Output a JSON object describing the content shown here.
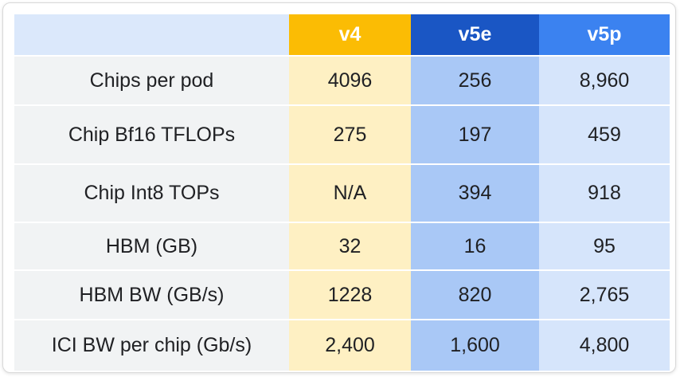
{
  "table": {
    "headers": [
      "",
      "v4",
      "v5e",
      "v5p"
    ],
    "rows": [
      {
        "label": "Chips per pod",
        "v4": "4096",
        "v5e": "256",
        "v5p": "8,960"
      },
      {
        "label": "Chip Bf16 TFLOPs",
        "v4": "275",
        "v5e": "197",
        "v5p": "459"
      },
      {
        "label": "Chip Int8 TOPs",
        "v4": "N/A",
        "v5e": "394",
        "v5p": "918"
      },
      {
        "label": "HBM (GB)",
        "v4": "32",
        "v5e": "16",
        "v5p": "95"
      },
      {
        "label": "HBM BW (GB/s)",
        "v4": "1228",
        "v5e": "820",
        "v5p": "2,765"
      },
      {
        "label": "ICI BW per chip (Gb/s)",
        "v4": "2,400",
        "v5e": "1,600",
        "v5p": "4,800"
      }
    ]
  },
  "colors": {
    "header_blank": "#dbe8fb",
    "v4_header": "#fbbc04",
    "v5e_header": "#1a56c4",
    "v5p_header": "#3b82f0",
    "label_cell": "#f1f3f4",
    "v4_cell": "#fef0c3",
    "v5e_cell": "#a9c8f6",
    "v5p_cell": "#d6e5fb"
  }
}
